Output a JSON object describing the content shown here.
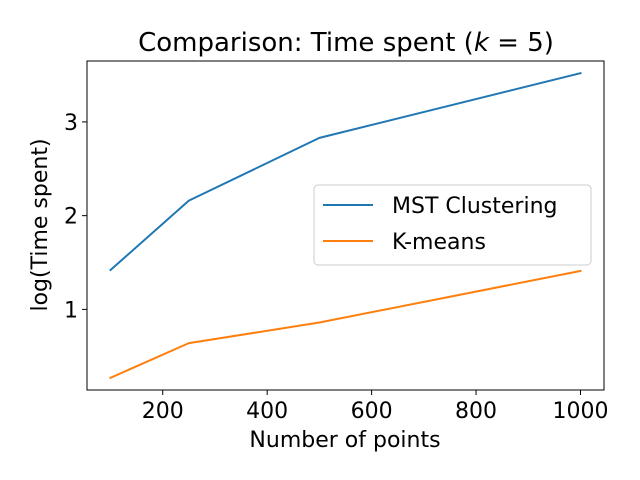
{
  "chart_data": {
    "type": "line",
    "title": "Comparison: Time spent (",
    "title_var": "k",
    "title_rest": " = 5)",
    "xlabel": "Number of points",
    "ylabel": "log(Time spent)",
    "xlim": [
      55,
      1045
    ],
    "ylim": [
      0.14,
      3.65
    ],
    "xticks": [
      200,
      400,
      600,
      800,
      1000
    ],
    "xtick_labels": [
      "200",
      "400",
      "600",
      "800",
      "1000"
    ],
    "yticks": [
      1,
      2,
      3
    ],
    "ytick_labels": [
      "1",
      "2",
      "3"
    ],
    "grid": false,
    "legend_position": "center-right",
    "series": [
      {
        "name": "MST Clustering",
        "color": "#1f77b4",
        "x": [
          100,
          250,
          500,
          1000
        ],
        "y": [
          1.42,
          2.16,
          2.83,
          3.52
        ]
      },
      {
        "name": "K-means",
        "color": "#ff7f0e",
        "x": [
          100,
          250,
          500,
          1000
        ],
        "y": [
          0.27,
          0.64,
          0.86,
          1.41
        ]
      }
    ]
  }
}
